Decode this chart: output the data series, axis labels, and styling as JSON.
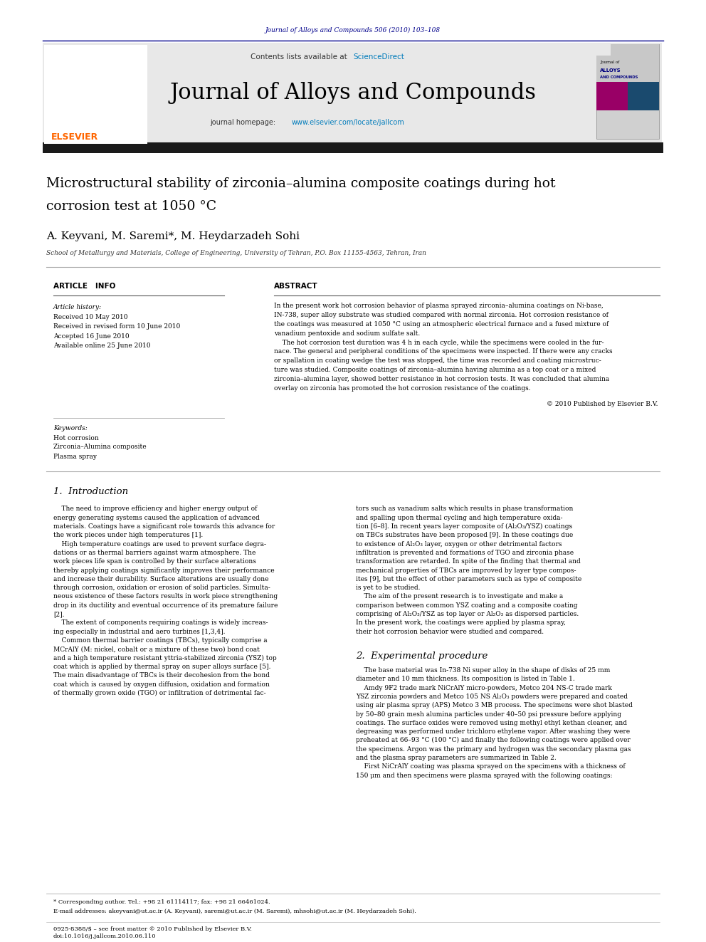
{
  "page_width": 9.92,
  "page_height": 13.23,
  "bg_color": "#ffffff",
  "header_journal_ref": "Journal of Alloys and Compounds 506 (2010) 103–108",
  "header_ref_color": "#00008B",
  "header_line_color": "#00008B",
  "banner_bg": "#e8e8e8",
  "banner_sciencedirect_color": "#007bbb",
  "journal_title": "Journal of Alloys and Compounds",
  "homepage_color": "#007bbb",
  "dark_bar_color": "#1a1a1a",
  "article_title_line1": "Microstructural stability of zirconia–alumina composite coatings during hot",
  "article_title_line2": "corrosion test at 1050 °C",
  "article_title_color": "#000000",
  "authors": "A. Keyvani, M. Saremi*, M. Heydarzadeh Sohi",
  "affiliation": "School of Metallurgy and Materials, College of Engineering, University of Tehran, P.O. Box 11155-4563, Tehran, Iran",
  "article_info_title": "ARTICLE   INFO",
  "abstract_title": "ABSTRACT",
  "article_history_label": "Article history:",
  "received_1": "Received 10 May 2010",
  "received_2": "Received in revised form 10 June 2010",
  "accepted": "Accepted 16 June 2010",
  "available": "Available online 25 June 2010",
  "keywords_label": "Keywords:",
  "keyword1": "Hot corrosion",
  "keyword2": "Zirconia–Alumina composite",
  "keyword3": "Plasma spray",
  "copyright": "© 2010 Published by Elsevier B.V.",
  "intro_title": "1.  Introduction",
  "exp_title": "2.  Experimental procedure",
  "footnote_star": "* Corresponding author. Tel.: +98 21 61114117; fax: +98 21 66461024.",
  "footnote_email": "E-mail addresses: akeyvani@ut.ac.ir (A. Keyvani), saremi@ut.ac.ir (M. Saremi), mhsohi@ut.ac.ir (M. Heydarzadeh Sohi).",
  "footer_issn": "0925-8388/$ – see front matter © 2010 Published by Elsevier B.V.",
  "footer_doi": "doi:10.1016/j.jallcom.2010.06.110"
}
